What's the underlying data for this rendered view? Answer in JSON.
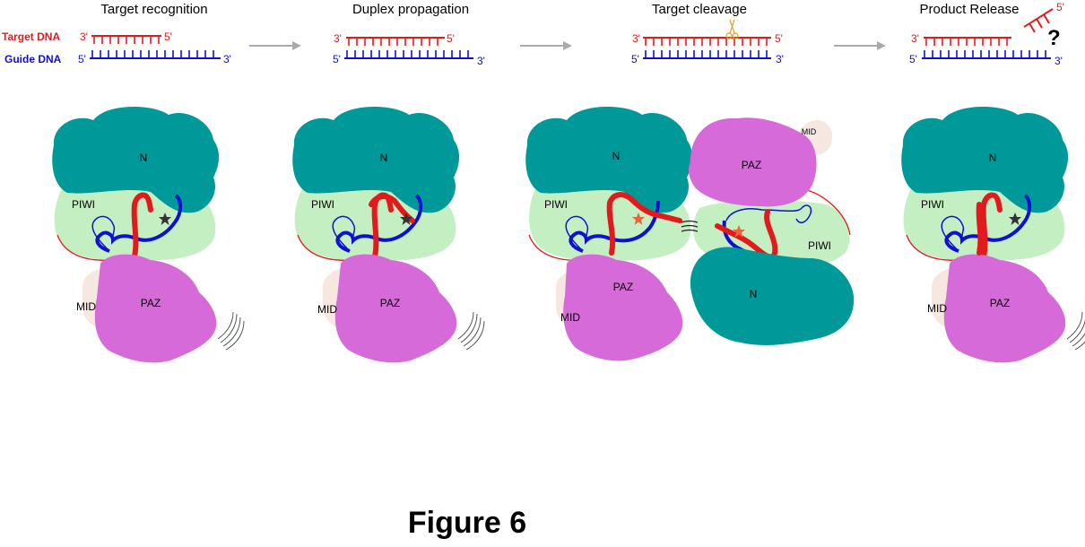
{
  "legend": {
    "target": "Target DNA",
    "guide": "Guide DNA"
  },
  "ends": {
    "three": "3'",
    "five": "5'"
  },
  "stages": [
    {
      "title": "Target recognition"
    },
    {
      "title": "Duplex propagation"
    },
    {
      "title": "Target cleavage"
    },
    {
      "title": "Product Release"
    }
  ],
  "domains": {
    "n": "N",
    "piwi": "PIWI",
    "paz": "PAZ",
    "mid": "MID"
  },
  "question": "?",
  "caption": "Figure 6",
  "colors": {
    "target_dna": "#e31a1c",
    "guide_dna": "#1010d0",
    "n_domain": "#00999a",
    "piwi_domain": "#c3efc3",
    "paz_domain": "#d66ad8",
    "mid_domain": "#f6e8e0",
    "arrow": "#a9a9a9",
    "scissors": "#e8a020"
  },
  "icons": [
    "arrow-right-icon",
    "scissors-icon",
    "star-icon",
    "motion-lines-icon"
  ]
}
